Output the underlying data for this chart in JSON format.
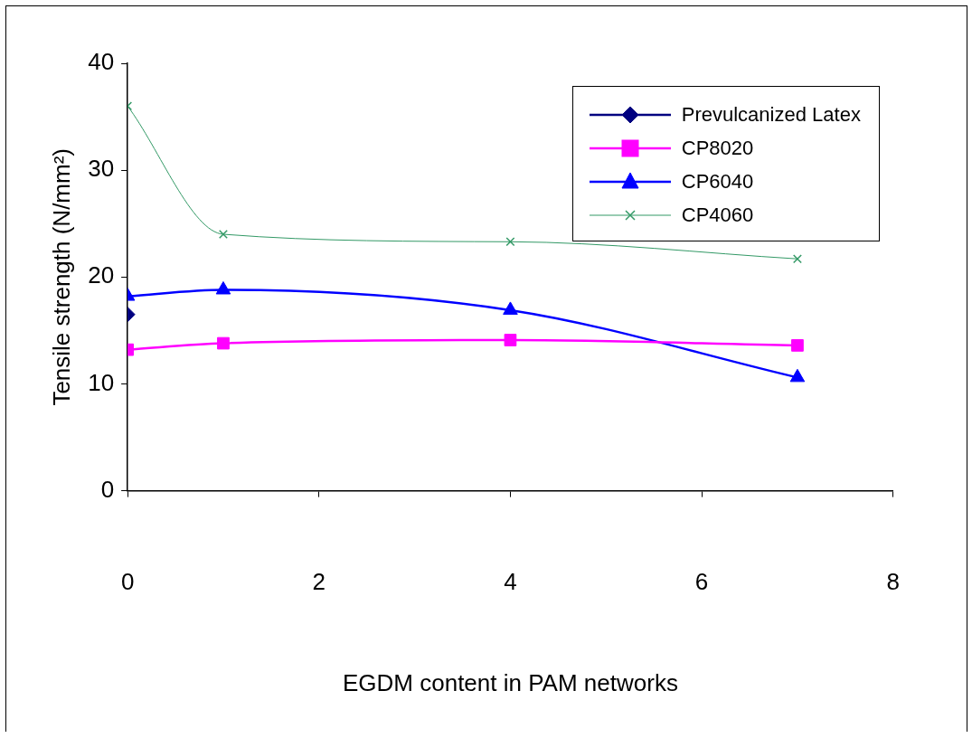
{
  "chart_data": {
    "type": "line",
    "xlabel": "EGDM content in PAM networks",
    "ylabel": "Tensile strength (N/mm²)",
    "xlim": [
      0,
      8
    ],
    "xticks": [
      0,
      2,
      4,
      6,
      8
    ],
    "ylim": [
      0,
      40
    ],
    "yticks": [
      0,
      10,
      20,
      30,
      40
    ],
    "grid": false,
    "legend": "top right",
    "line_style": "solid",
    "series": [
      {
        "name": "Prevulcanized Latex",
        "color": "#000080",
        "marker": "diamond",
        "x": [
          0
        ],
        "values": [
          16.5
        ]
      },
      {
        "name": "CP8020",
        "color": "#ff00ff",
        "marker": "square",
        "x": [
          0,
          1,
          4,
          7
        ],
        "values": [
          13.2,
          13.8,
          14.1,
          13.6
        ]
      },
      {
        "name": "CP6040",
        "color": "#0000ff",
        "marker": "triangle",
        "x": [
          0,
          1,
          4,
          7
        ],
        "values": [
          18.2,
          18.8,
          16.9,
          10.6
        ]
      },
      {
        "name": "CP4060",
        "color": "#339966",
        "marker": "cross",
        "x": [
          0,
          1,
          4,
          7
        ],
        "values": [
          36.0,
          24.0,
          23.3,
          21.7
        ]
      }
    ]
  }
}
